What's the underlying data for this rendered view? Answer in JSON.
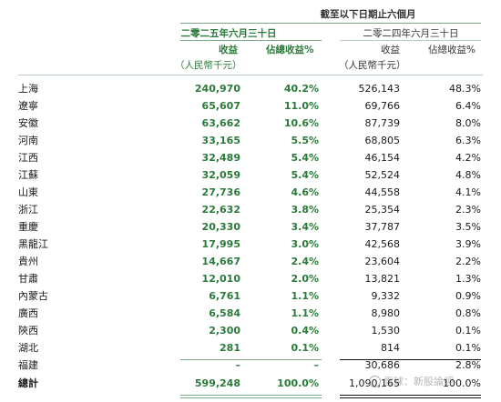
{
  "header": {
    "period_title": "截至以下日期止六個月",
    "period_2025": "二零二五年六月三十日",
    "period_2024": "二零二四年六月三十日",
    "col_revenue": "收益",
    "col_share": "佔總收益%",
    "unit": "（人民幣千元）"
  },
  "rows": [
    {
      "name": "上海",
      "rev2025": "240,970",
      "pct2025": "40.2%",
      "rev2024": "526,143",
      "pct2024": "48.3%"
    },
    {
      "name": "遼寧",
      "rev2025": "65,607",
      "pct2025": "11.0%",
      "rev2024": "69,766",
      "pct2024": "6.4%"
    },
    {
      "name": "安徽",
      "rev2025": "63,662",
      "pct2025": "10.6%",
      "rev2024": "87,739",
      "pct2024": "8.0%"
    },
    {
      "name": "河南",
      "rev2025": "33,165",
      "pct2025": "5.5%",
      "rev2024": "68,805",
      "pct2024": "6.3%"
    },
    {
      "name": "江西",
      "rev2025": "32,489",
      "pct2025": "5.4%",
      "rev2024": "46,154",
      "pct2024": "4.2%"
    },
    {
      "name": "江蘇",
      "rev2025": "32,059",
      "pct2025": "5.4%",
      "rev2024": "52,524",
      "pct2024": "4.8%"
    },
    {
      "name": "山東",
      "rev2025": "27,736",
      "pct2025": "4.6%",
      "rev2024": "44,558",
      "pct2024": "4.1%"
    },
    {
      "name": "浙江",
      "rev2025": "22,632",
      "pct2025": "3.8%",
      "rev2024": "25,354",
      "pct2024": "2.3%"
    },
    {
      "name": "重慶",
      "rev2025": "20,330",
      "pct2025": "3.4%",
      "rev2024": "37,787",
      "pct2024": "3.5%"
    },
    {
      "name": "黑龍江",
      "rev2025": "17,995",
      "pct2025": "3.0%",
      "rev2024": "42,568",
      "pct2024": "3.9%"
    },
    {
      "name": "貴州",
      "rev2025": "14,667",
      "pct2025": "2.4%",
      "rev2024": "23,604",
      "pct2024": "2.2%"
    },
    {
      "name": "甘肅",
      "rev2025": "12,010",
      "pct2025": "2.0%",
      "rev2024": "13,821",
      "pct2024": "1.3%"
    },
    {
      "name": "內蒙古",
      "rev2025": "6,761",
      "pct2025": "1.1%",
      "rev2024": "9,332",
      "pct2024": "0.9%"
    },
    {
      "name": "廣西",
      "rev2025": "6,584",
      "pct2025": "1.1%",
      "rev2024": "8,980",
      "pct2024": "0.8%"
    },
    {
      "name": "陝西",
      "rev2025": "2,300",
      "pct2025": "0.4%",
      "rev2024": "1,530",
      "pct2024": "0.1%"
    },
    {
      "name": "湖北",
      "rev2025": "281",
      "pct2025": "0.1%",
      "rev2024": "814",
      "pct2024": "0.1%"
    },
    {
      "name": "福建",
      "rev2025": "–",
      "pct2025": "–",
      "rev2024": "30,686",
      "pct2024": "2.8%"
    }
  ],
  "total": {
    "name": "總計",
    "rev2025": "599,248",
    "pct2025": "100.0%",
    "rev2024": "1,090,165",
    "pct2024": "100.0%"
  },
  "watermark": "雪球：新股論經"
}
